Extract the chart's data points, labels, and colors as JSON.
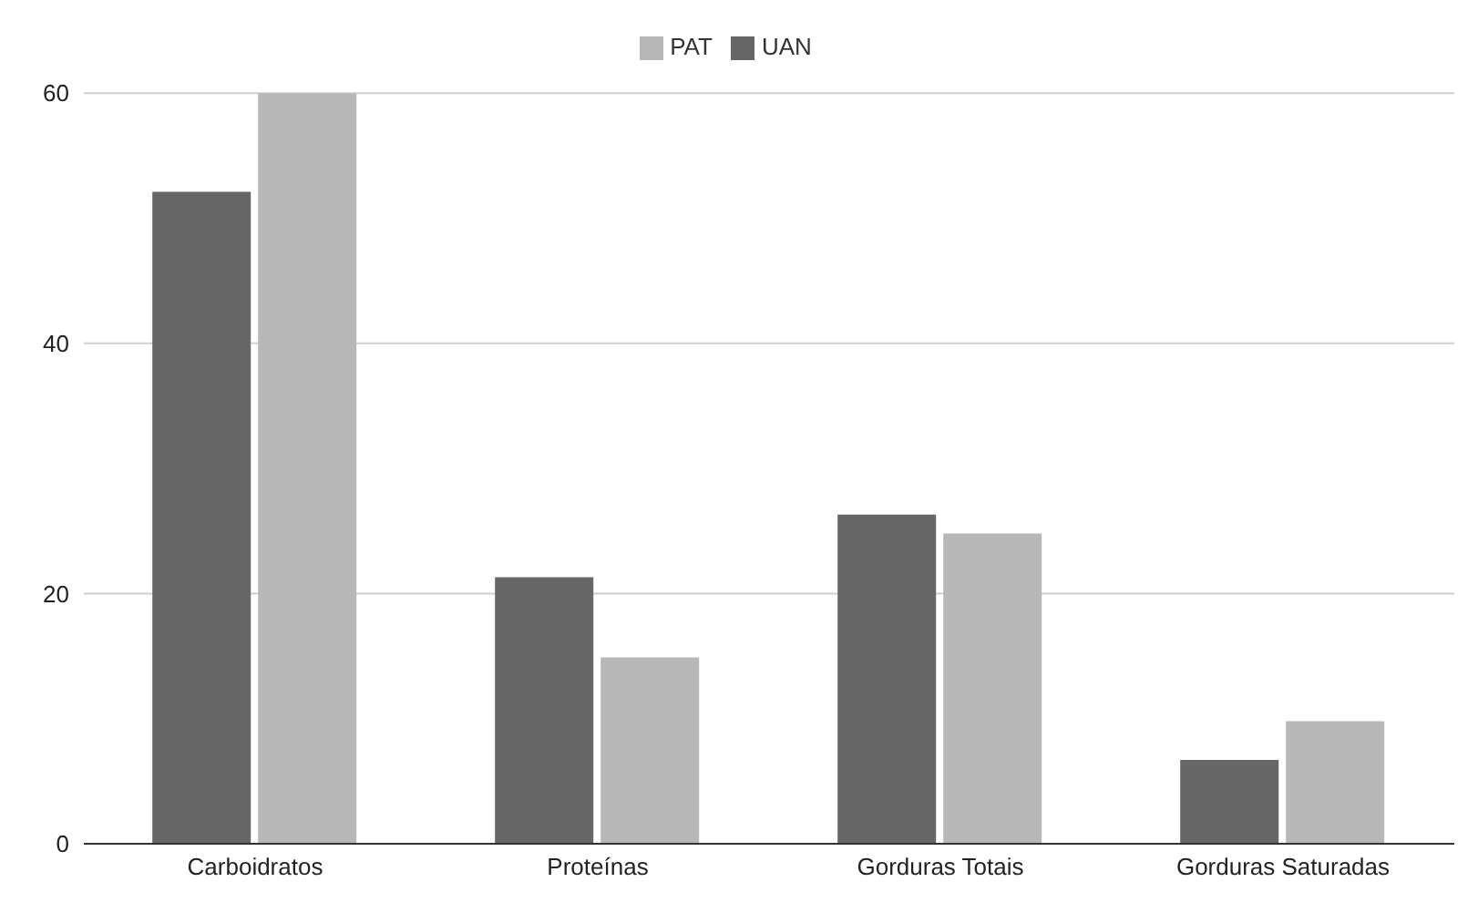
{
  "chart_data": {
    "type": "bar",
    "categories": [
      "Carboidratos",
      "Proteínas",
      "Gorduras Totais",
      "Gorduras Saturadas"
    ],
    "series": [
      {
        "name": "UAN",
        "color": "#666666",
        "values": [
          52.1,
          21.3,
          26.3,
          6.7
        ]
      },
      {
        "name": "PAT",
        "color": "#b7b7b7",
        "values": [
          60,
          14.9,
          24.8,
          9.8
        ]
      }
    ],
    "ylim": [
      0,
      60
    ],
    "yticks": [
      0,
      20,
      40,
      60
    ],
    "grid": "y",
    "legend": "top"
  }
}
